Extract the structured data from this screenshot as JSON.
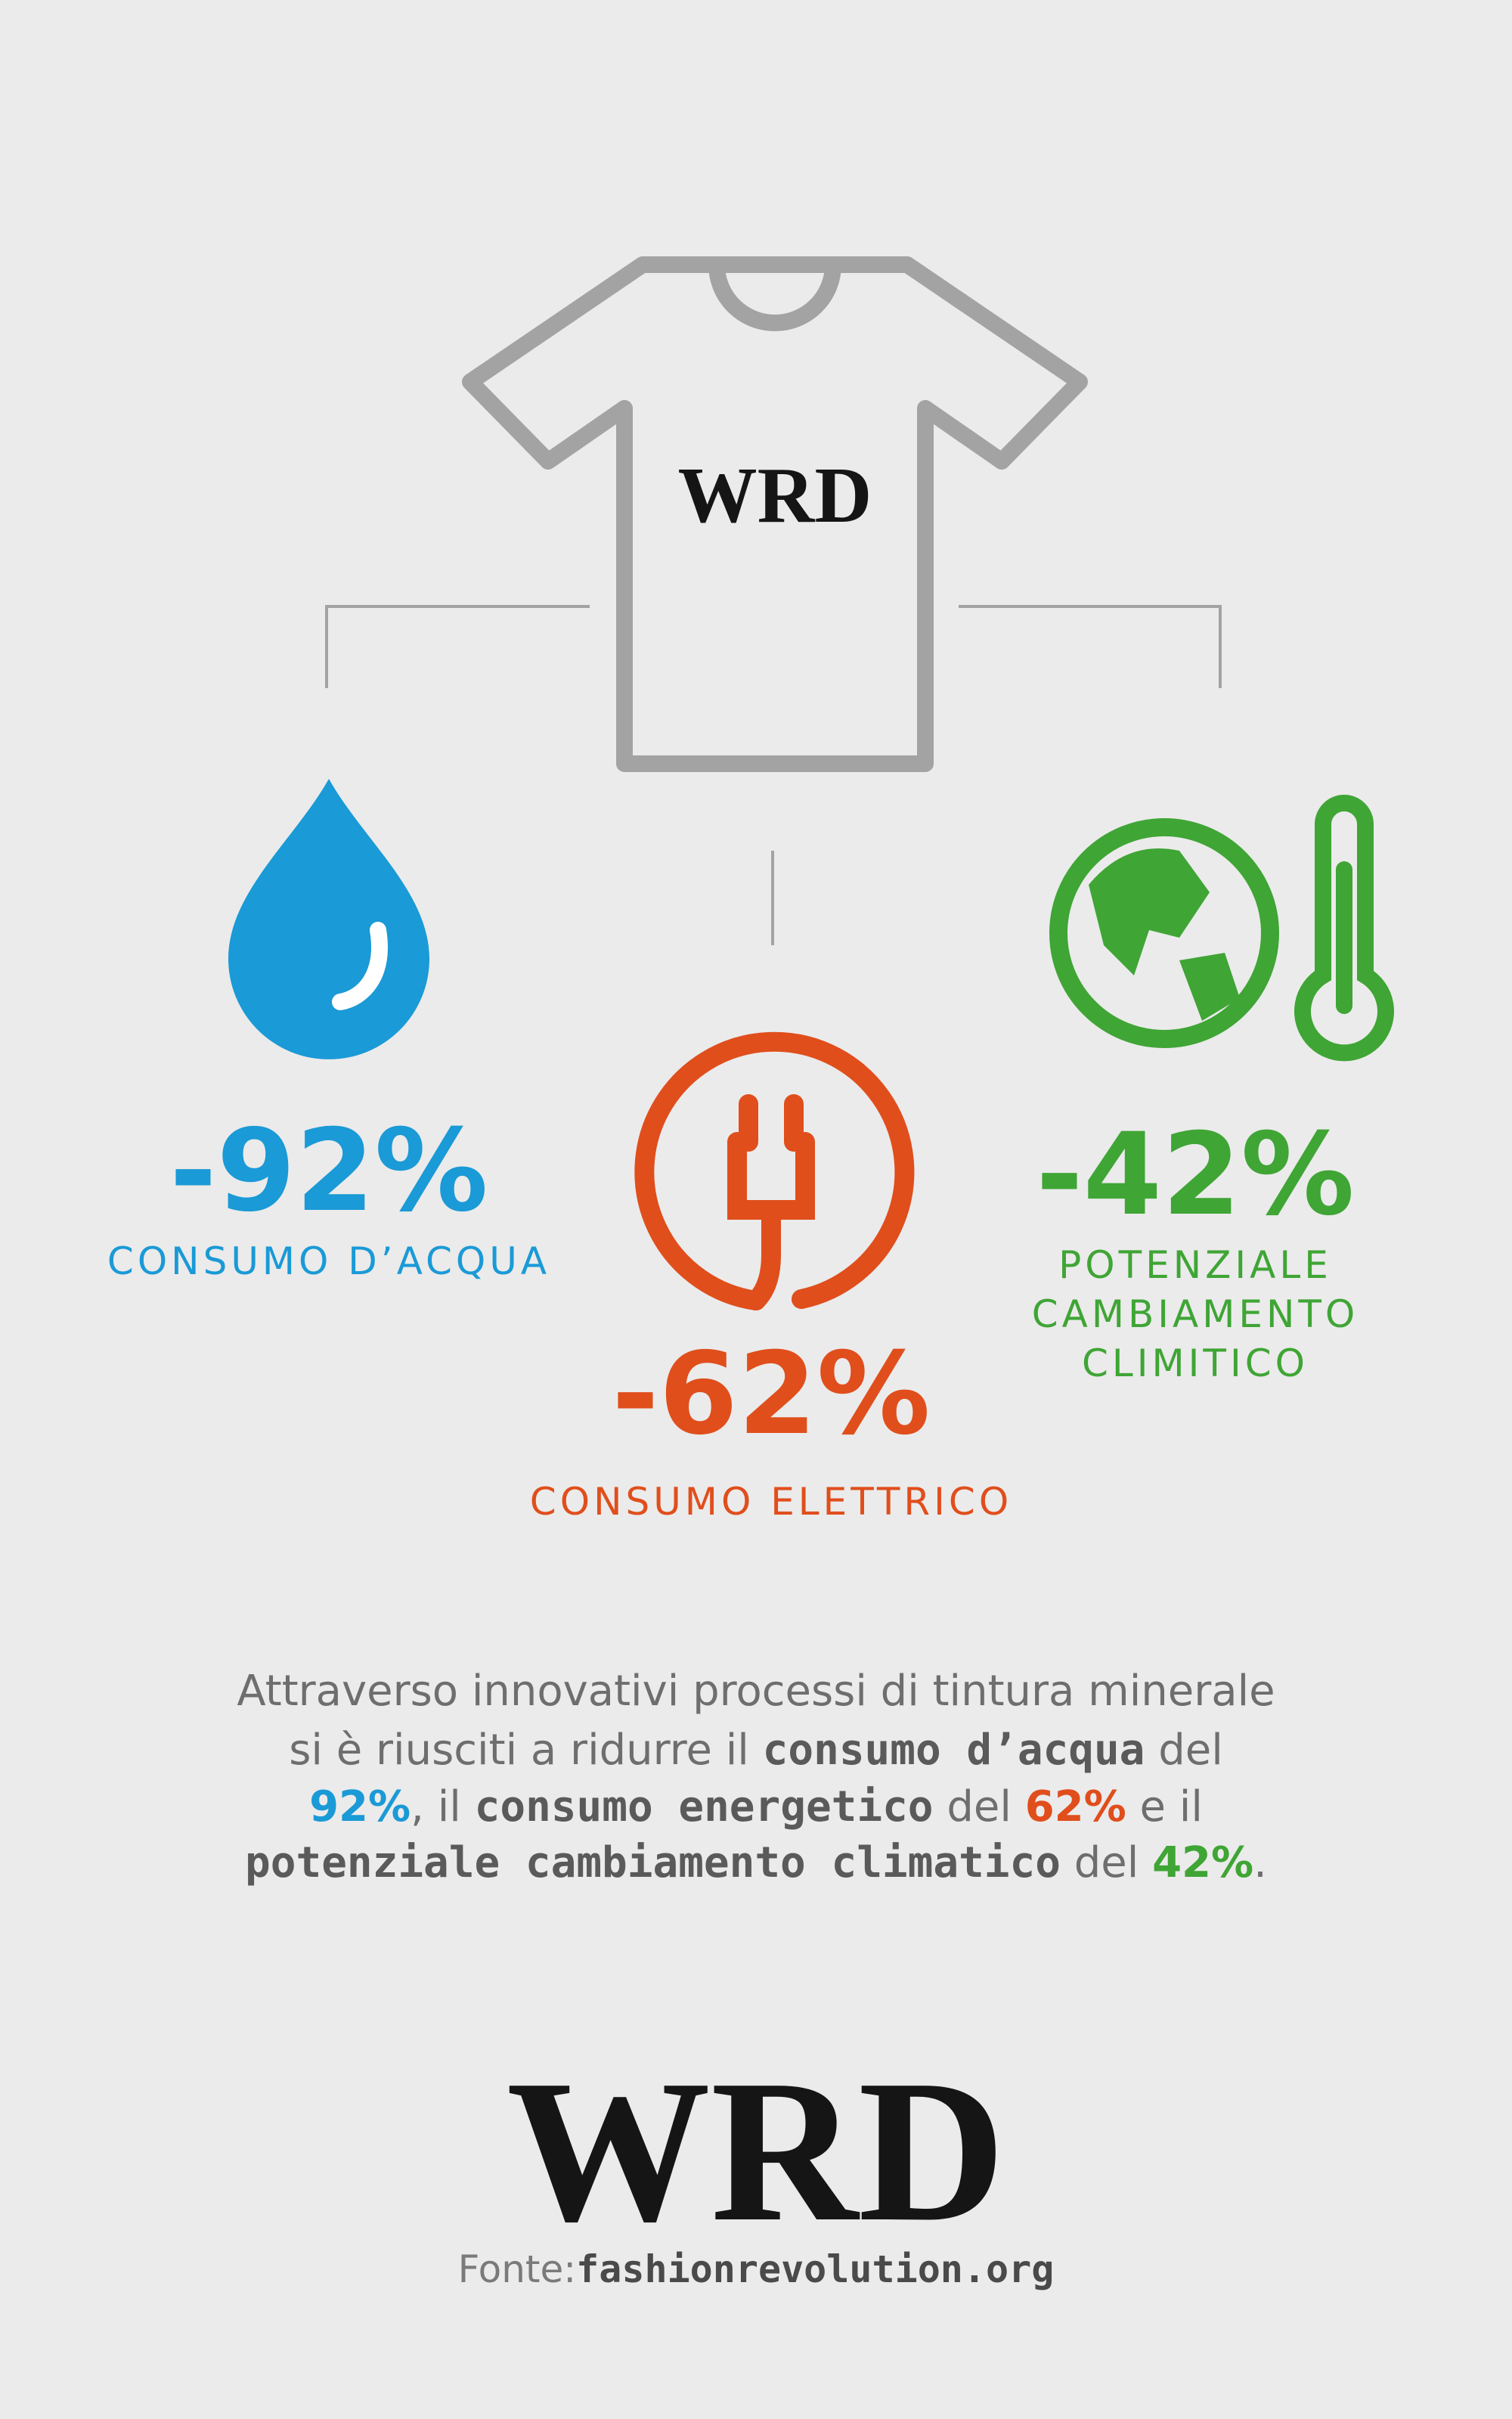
{
  "shirt_logo": "WRD",
  "stats": [
    {
      "value": "-92%",
      "label_lines": [
        "CONSUMO D’ACQUA"
      ]
    },
    {
      "value": "-62%",
      "label_lines": [
        "CONSUMO ELETTRICO"
      ]
    },
    {
      "value": "-42%",
      "label_lines": [
        "POTENZIALE",
        "CAMBIAMENTO",
        "CLIMITICO"
      ]
    }
  ],
  "paragraph": {
    "lines": [
      [
        "Attraverso innovativi processi di tintura minerale"
      ],
      [
        "si è riusciti a ridurre il ",
        "consumo d’acqua",
        " del"
      ],
      [
        "92%",
        ", il ",
        "consumo energetico",
        " del ",
        "62%",
        " e il"
      ],
      [
        "potenziale cambiamento climatico",
        " del ",
        "42%",
        "."
      ]
    ]
  },
  "logo": "WRD",
  "source": {
    "label": "Fonte:",
    "url": "fashionrevolution.org"
  }
}
